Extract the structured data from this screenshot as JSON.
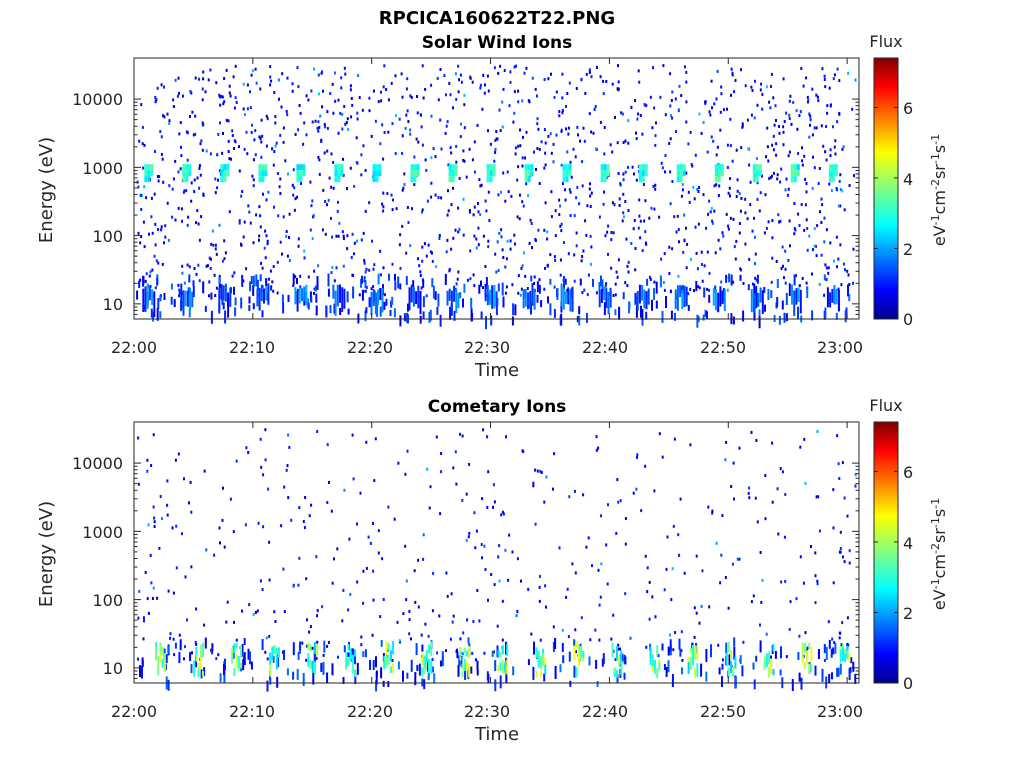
{
  "figure": {
    "title": "RPCICA160622T22.PNG",
    "colorbar_title": "Flux",
    "colorbar_unit": "eV-1cm-2sr-1s-1",
    "colorbar_ticks": [
      "0",
      "2",
      "4",
      "6"
    ],
    "colorscale": "jet",
    "colorbar_range": [
      0,
      7.4
    ]
  },
  "chart_data": [
    {
      "type": "heatmap",
      "title": "Solar Wind Ions",
      "xlabel": "Time",
      "ylabel": "Energy (eV)",
      "x_ticks": [
        "22:00",
        "22:10",
        "22:20",
        "22:30",
        "22:40",
        "22:50",
        "23:00"
      ],
      "y_ticks": [
        "10",
        "100",
        "1000",
        "10000"
      ],
      "y_scale": "log",
      "xlim": [
        "22:00",
        "23:01"
      ],
      "ylim": [
        6,
        40000
      ],
      "features": {
        "periodic_bursts_energy_eV": 850,
        "burst_period_min": 3.2,
        "burst_start_min": 1.2,
        "burst_flux": 3.0,
        "low_energy_band_eV": [
          6,
          30
        ],
        "background": "sparse scattered counts, flux 0.5-2"
      }
    },
    {
      "type": "heatmap",
      "title": "Cometary Ions",
      "xlabel": "Time",
      "ylabel": "Energy (eV)",
      "x_ticks": [
        "22:00",
        "22:10",
        "22:20",
        "22:30",
        "22:40",
        "22:50",
        "23:00"
      ],
      "y_ticks": [
        "10",
        "100",
        "1000",
        "10000"
      ],
      "y_scale": "log",
      "xlim": [
        "22:00",
        "23:01"
      ],
      "ylim": [
        6,
        40000
      ],
      "features": {
        "low_energy_bursts_eV": [
          7,
          25
        ],
        "burst_period_min": 3.2,
        "burst_start_min": 2.2,
        "burst_flux": 3.8,
        "background": "sparse scattered counts, flux 0.5-2"
      }
    }
  ]
}
